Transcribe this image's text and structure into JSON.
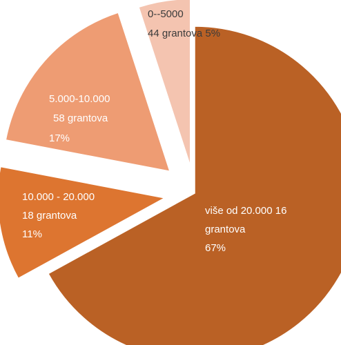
{
  "chart_data": {
    "type": "pie",
    "exploded": true,
    "slices": [
      {
        "category": "0--5000",
        "count_label": "44 grantova",
        "percent_label": "5%",
        "value": 5,
        "color": "#F4C4B0"
      },
      {
        "category": "5.000-10.000",
        "count_label": "58 grantova",
        "percent_label": "17%",
        "value": 17,
        "color": "#EE9C73"
      },
      {
        "category": "10.000 - 20.000",
        "count_label": "18 grantova",
        "percent_label": "11%",
        "value": 11,
        "color": "#DD7530"
      },
      {
        "category": "više od 20.000",
        "count_label": "16 grantova",
        "percent_label": "67%",
        "value": 67,
        "color": "#BA6125"
      }
    ],
    "labels": {
      "s0": {
        "line1": "0--5000",
        "line2": "44 grantova 5%"
      },
      "s1": {
        "line1": "5.000-10.000",
        "line2": "58 grantova",
        "line3": "17%"
      },
      "s2": {
        "line1": "10.000 - 20.000",
        "line2": "18 grantova",
        "line3": "11%"
      },
      "s3": {
        "line1": "više od 20.000  16",
        "line2": "grantova",
        "line3": "67%"
      }
    }
  }
}
